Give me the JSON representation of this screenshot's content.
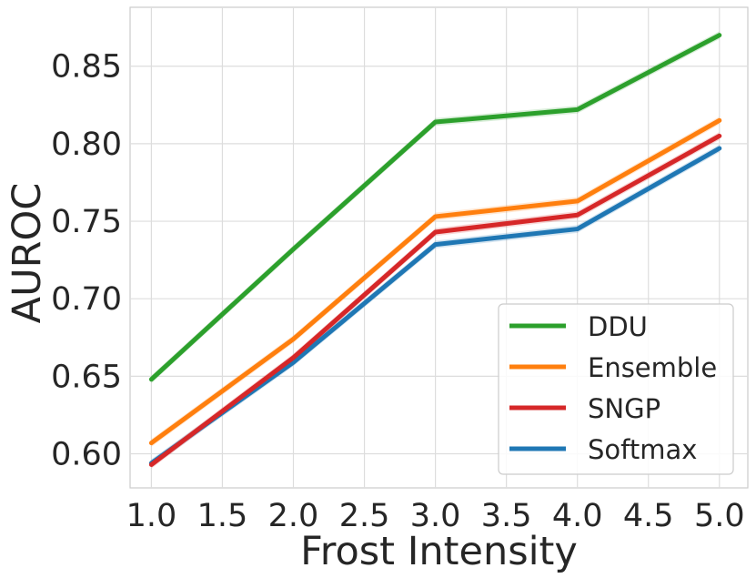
{
  "chart_data": {
    "type": "line",
    "title": "",
    "xlabel": "Frost Intensity",
    "ylabel": "AUROC",
    "x": [
      1.0,
      2.0,
      3.0,
      4.0,
      5.0
    ],
    "xlim": [
      0.85,
      5.2
    ],
    "ylim": [
      0.578,
      0.888
    ],
    "xticks": [
      1.0,
      1.5,
      2.0,
      2.5,
      3.0,
      3.5,
      4.0,
      4.5,
      5.0
    ],
    "xtick_labels": [
      "1.0",
      "1.5",
      "2.0",
      "2.5",
      "3.0",
      "3.5",
      "4.0",
      "4.5",
      "5.0"
    ],
    "yticks": [
      0.6,
      0.65,
      0.7,
      0.75,
      0.8,
      0.85
    ],
    "ytick_labels": [
      "0.60",
      "0.65",
      "0.70",
      "0.75",
      "0.80",
      "0.85"
    ],
    "grid": true,
    "legend_position": "bottom-right",
    "series": [
      {
        "name": "DDU",
        "color": "#2ca02c",
        "values": [
          0.648,
          0.732,
          0.814,
          0.822,
          0.87
        ]
      },
      {
        "name": "Ensemble",
        "color": "#ff7f0e",
        "values": [
          0.607,
          0.674,
          0.753,
          0.763,
          0.815
        ]
      },
      {
        "name": "SNGP",
        "color": "#d62728",
        "values": [
          0.593,
          0.662,
          0.743,
          0.754,
          0.805
        ]
      },
      {
        "name": "Softmax",
        "color": "#1f77b4",
        "values": [
          0.594,
          0.659,
          0.735,
          0.745,
          0.797
        ]
      }
    ]
  }
}
